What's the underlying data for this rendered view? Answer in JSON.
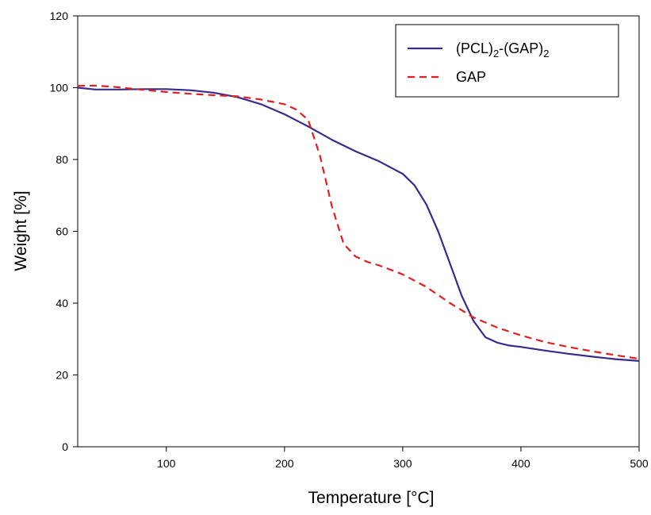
{
  "chart_data": {
    "type": "line",
    "title": "",
    "xlabel": "Temperature [°C]",
    "ylabel": "Weight [%]",
    "xlim": [
      25,
      500
    ],
    "ylim": [
      0,
      120
    ],
    "x_ticks": [
      100,
      200,
      300,
      400,
      500
    ],
    "y_ticks": [
      0,
      20,
      40,
      60,
      80,
      100,
      120
    ],
    "grid": false,
    "legend_position": "top-right",
    "series": [
      {
        "name": "(PCL)2-(GAP)2",
        "name_parts": {
          "a": "(PCL)",
          "sub1": "2",
          "b": "-(GAP)",
          "sub2": "2"
        },
        "color": "#3a2a8c",
        "style": "solid",
        "x": [
          25,
          40,
          60,
          80,
          100,
          120,
          140,
          160,
          180,
          200,
          220,
          240,
          260,
          280,
          300,
          310,
          320,
          330,
          340,
          350,
          360,
          370,
          380,
          390,
          400,
          420,
          440,
          460,
          480,
          500
        ],
        "y": [
          100,
          99.5,
          99.5,
          99.6,
          99.6,
          99.3,
          98.6,
          97.4,
          95.4,
          92.6,
          89.2,
          85.5,
          82.3,
          79.5,
          76,
          72.8,
          67.5,
          60,
          51,
          42,
          35,
          30.5,
          29,
          28.2,
          27.8,
          26.8,
          25.9,
          25.1,
          24.4,
          23.9
        ]
      },
      {
        "name": "GAP",
        "color": "#e02020",
        "style": "dashed",
        "x": [
          25,
          40,
          60,
          80,
          100,
          120,
          140,
          160,
          180,
          200,
          210,
          220,
          230,
          240,
          250,
          260,
          270,
          280,
          300,
          320,
          340,
          360,
          380,
          400,
          420,
          440,
          460,
          480,
          500
        ],
        "y": [
          100.5,
          100.6,
          100.1,
          99.4,
          98.8,
          98.3,
          97.9,
          97.6,
          96.7,
          95.4,
          93.9,
          91,
          81,
          67,
          56.5,
          53,
          51.5,
          50.5,
          48,
          44.5,
          40,
          36,
          33.2,
          31,
          29.2,
          27.8,
          26.6,
          25.5,
          24.5
        ]
      }
    ]
  }
}
